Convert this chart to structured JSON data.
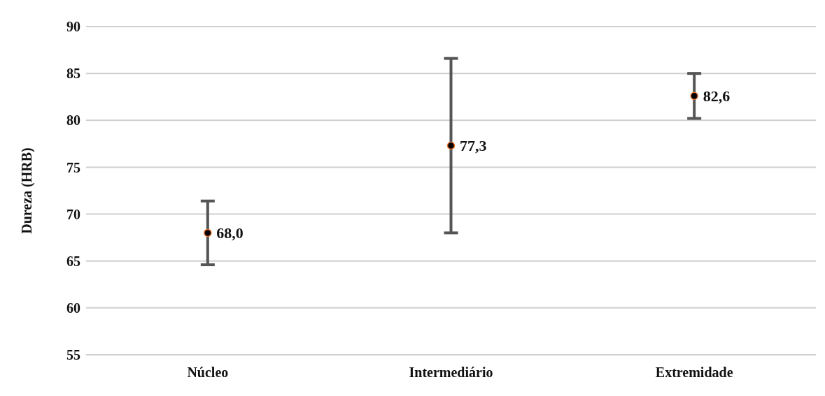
{
  "chart_data": {
    "type": "scatter",
    "ylabel": "Dureza (HRB)",
    "categories": [
      "Núcleo",
      "Intermediário",
      "Extremidade"
    ],
    "series": [
      {
        "color": "#000000",
        "values": [
          68.0,
          77.3,
          82.6
        ],
        "errors": [
          3.4,
          9.3,
          2.4
        ],
        "value_labels": [
          "68,0",
          "77,3",
          "82,6"
        ]
      }
    ],
    "ylim": [
      55,
      90
    ],
    "yticks": [
      55,
      60,
      65,
      70,
      75,
      80,
      85,
      90
    ],
    "grid": "y",
    "marker": "circle"
  }
}
